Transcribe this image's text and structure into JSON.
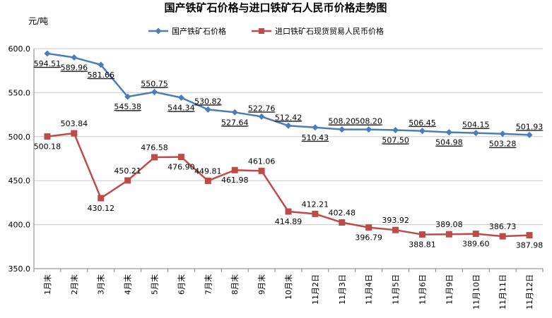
{
  "chart_data": {
    "type": "line",
    "title": "国产铁矿石价格与进口铁矿石人民币价格走势图",
    "ylabel": "元/吨",
    "xlabel": "",
    "ylim": [
      350,
      600
    ],
    "yticks": [
      "350.0",
      "400.0",
      "450.0",
      "500.0",
      "550.0",
      "600.0"
    ],
    "categories": [
      "1月末",
      "2月末",
      "3月末",
      "4月末",
      "5月末",
      "6月末",
      "7月末",
      "8月末",
      "9月末",
      "10月末",
      "11月2日",
      "11月3日",
      "11月4日",
      "11月5日",
      "11月6日",
      "11月9日",
      "11月10日",
      "11月11日",
      "11月12日"
    ],
    "grid": true,
    "legend_position": "top",
    "series": [
      {
        "name": "国产铁矿石价格",
        "color": "#4A7EBB",
        "marker": "diamond",
        "values": [
          594.51,
          589.96,
          581.66,
          545.38,
          550.75,
          544.34,
          530.82,
          527.64,
          522.76,
          512.42,
          510.43,
          508.2,
          508.2,
          507.5,
          506.45,
          504.98,
          504.15,
          503.28,
          501.93
        ],
        "labels": [
          "594.51",
          "589.96",
          "581.66",
          "545.38",
          "550.75",
          "544.34",
          "530.82",
          "527.64",
          "522.76",
          "512.42",
          "510.43",
          "508.20",
          "508.20",
          "507.50",
          "506.45",
          "504.98",
          "504.15",
          "503.28",
          "501.93"
        ]
      },
      {
        "name": "进口铁矿石现货贸易人民币价格",
        "color": "#BE4B48",
        "marker": "square",
        "values": [
          500.18,
          503.84,
          430.12,
          450.21,
          476.58,
          476.9,
          449.81,
          461.98,
          461.06,
          414.89,
          412.21,
          402.48,
          396.79,
          393.92,
          388.81,
          389.08,
          389.6,
          386.73,
          387.98
        ],
        "labels": [
          "500.18",
          "503.84",
          "430.12",
          "450.21",
          "476.58",
          "476.90",
          "449.81",
          "461.98",
          "461.06",
          "414.89",
          "412.21",
          "402.48",
          "396.79",
          "393.92",
          "388.81",
          "389.08",
          "389.60",
          "386.73",
          "387.98"
        ]
      }
    ]
  }
}
